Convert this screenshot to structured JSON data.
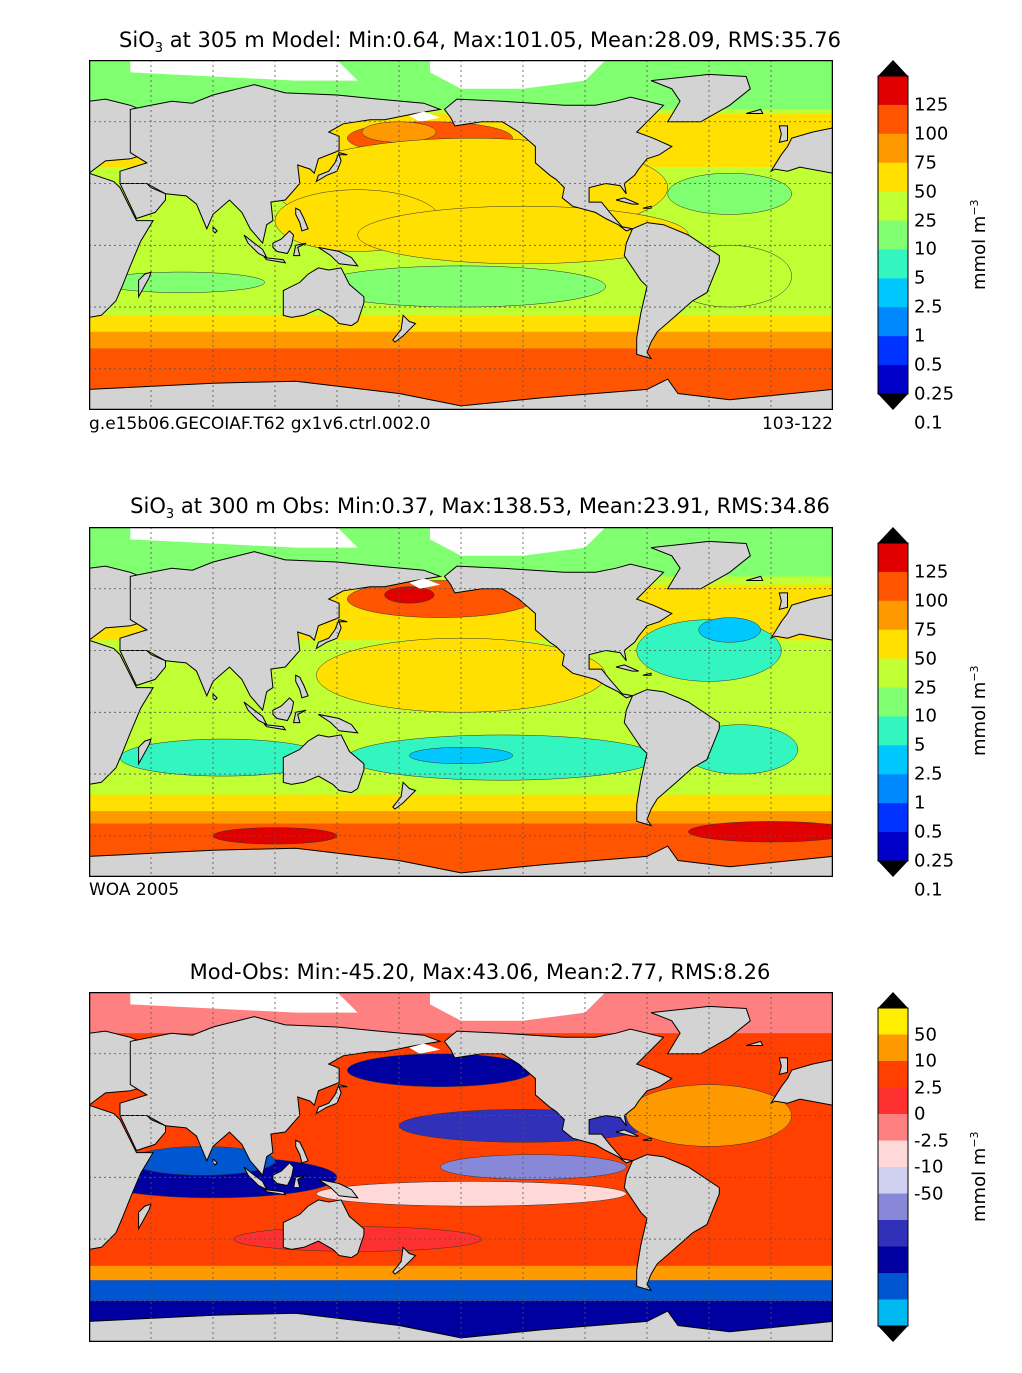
{
  "chart_data": [
    {
      "type": "heatmap",
      "panel": "model",
      "title_prefix": "SiO",
      "title_sub": "3",
      "title_rest": " at 305 m Model: Min:0.64, Max:101.05, Mean:28.09, RMS:35.76",
      "stats": {
        "min": 0.64,
        "max": 101.05,
        "mean": 28.09,
        "rms": 35.76
      },
      "depth": "305 m",
      "caption_left": "g.e15b06.GECOIAF.T62 gx1v6.ctrl.002.0",
      "caption_right": "103-122",
      "colorbar": {
        "levels": [
          "125",
          "100",
          "75",
          "50",
          "25",
          "10",
          "5",
          "2.5",
          "1",
          "0.5",
          "0.25",
          "0.1"
        ],
        "colors": [
          "#000080",
          "#0000c8",
          "#0033ff",
          "#0088ff",
          "#00c8ff",
          "#33f5c0",
          "#80ff70",
          "#c0ff33",
          "#ffe000",
          "#ff9900",
          "#ff5500",
          "#e00000",
          "#800000"
        ],
        "unit": "mmol m",
        "unit_exp": "−3"
      }
    },
    {
      "type": "heatmap",
      "panel": "obs",
      "title_prefix": "SiO",
      "title_sub": "3",
      "title_rest": " at 300 m Obs: Min:0.37, Max:138.53, Mean:23.91, RMS:34.86",
      "stats": {
        "min": 0.37,
        "max": 138.53,
        "mean": 23.91,
        "rms": 34.86
      },
      "depth": "300 m",
      "caption_left": "WOA 2005",
      "colorbar": {
        "levels": [
          "125",
          "100",
          "75",
          "50",
          "25",
          "10",
          "5",
          "2.5",
          "1",
          "0.5",
          "0.25",
          "0.1"
        ],
        "colors": [
          "#000080",
          "#0000c8",
          "#0033ff",
          "#0088ff",
          "#00c8ff",
          "#33f5c0",
          "#80ff70",
          "#c0ff33",
          "#ffe000",
          "#ff9900",
          "#ff5500",
          "#e00000",
          "#800000"
        ],
        "unit": "mmol m",
        "unit_exp": "−3"
      }
    },
    {
      "type": "heatmap",
      "panel": "diff",
      "title_prefix": "",
      "title_sub": "",
      "title_rest": "Mod-Obs: Min:-45.20, Max:43.06, Mean:2.77, RMS:8.26",
      "stats": {
        "min": -45.2,
        "max": 43.06,
        "mean": 2.77,
        "rms": 8.26
      },
      "colorbar": {
        "levels": [
          "50",
          "10",
          "2.5",
          "0",
          "-2.5",
          "-10",
          "-50"
        ],
        "colors": [
          "#00ffff",
          "#00b8f0",
          "#0055d0",
          "#0000a0",
          "#3030b8",
          "#8888d8",
          "#d0d0f0",
          "#ffd8d8",
          "#ff8080",
          "#ff3030",
          "#ff4000",
          "#ff9900",
          "#ffee00",
          "#ffff40"
        ],
        "unit": "mmol m",
        "unit_exp": "−3"
      }
    }
  ]
}
